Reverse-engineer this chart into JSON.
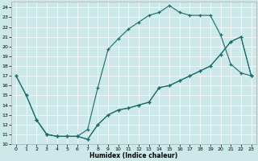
{
  "xlabel": "Humidex (Indice chaleur)",
  "bg_color": "#cce8e8",
  "line_color": "#1a6b6b",
  "xlim": [
    -0.5,
    23.5
  ],
  "ylim": [
    10,
    24.6
  ],
  "xticks": [
    0,
    1,
    2,
    3,
    4,
    5,
    6,
    7,
    8,
    9,
    10,
    11,
    12,
    13,
    14,
    15,
    16,
    17,
    18,
    19,
    20,
    21,
    22,
    23
  ],
  "yticks": [
    10,
    11,
    12,
    13,
    14,
    15,
    16,
    17,
    18,
    19,
    20,
    21,
    22,
    23,
    24
  ],
  "line1_x": [
    0,
    1,
    2,
    3,
    4,
    5,
    6,
    7,
    8,
    9,
    10,
    11,
    12,
    13,
    14,
    15,
    16,
    17,
    18,
    19,
    20,
    21,
    22,
    23
  ],
  "line1_y": [
    17,
    15,
    12.5,
    11,
    10.8,
    10.8,
    10.8,
    11.5,
    15.8,
    19.7,
    20.8,
    21.8,
    22.5,
    23.2,
    23.5,
    24.2,
    23.5,
    23.2,
    23.2,
    23.2,
    21.2,
    18.2,
    17.3,
    17.0
  ],
  "line2_x": [
    0,
    1,
    2,
    3,
    4,
    5,
    6,
    7,
    8,
    9,
    10,
    11,
    12,
    13,
    14,
    15,
    16,
    17,
    18,
    19,
    20,
    21,
    22,
    23
  ],
  "line2_y": [
    17,
    15,
    12.5,
    11,
    10.8,
    10.8,
    10.8,
    10.5,
    12.0,
    13.0,
    13.5,
    13.7,
    14.0,
    14.3,
    15.8,
    16.0,
    16.5,
    17.0,
    17.5,
    18.0,
    19.2,
    20.5,
    21.0,
    17.0
  ],
  "line3_x": [
    2,
    3,
    4,
    5,
    6,
    7,
    8,
    9,
    10,
    11,
    12,
    13,
    14,
    15,
    16,
    17,
    18,
    19,
    20,
    21,
    22,
    23
  ],
  "line3_y": [
    12.5,
    11,
    10.8,
    10.8,
    10.8,
    10.5,
    12.0,
    13.0,
    13.5,
    13.7,
    14.0,
    14.3,
    15.8,
    16.0,
    16.5,
    17.0,
    17.5,
    18.0,
    19.2,
    20.5,
    21.0,
    17.0
  ]
}
